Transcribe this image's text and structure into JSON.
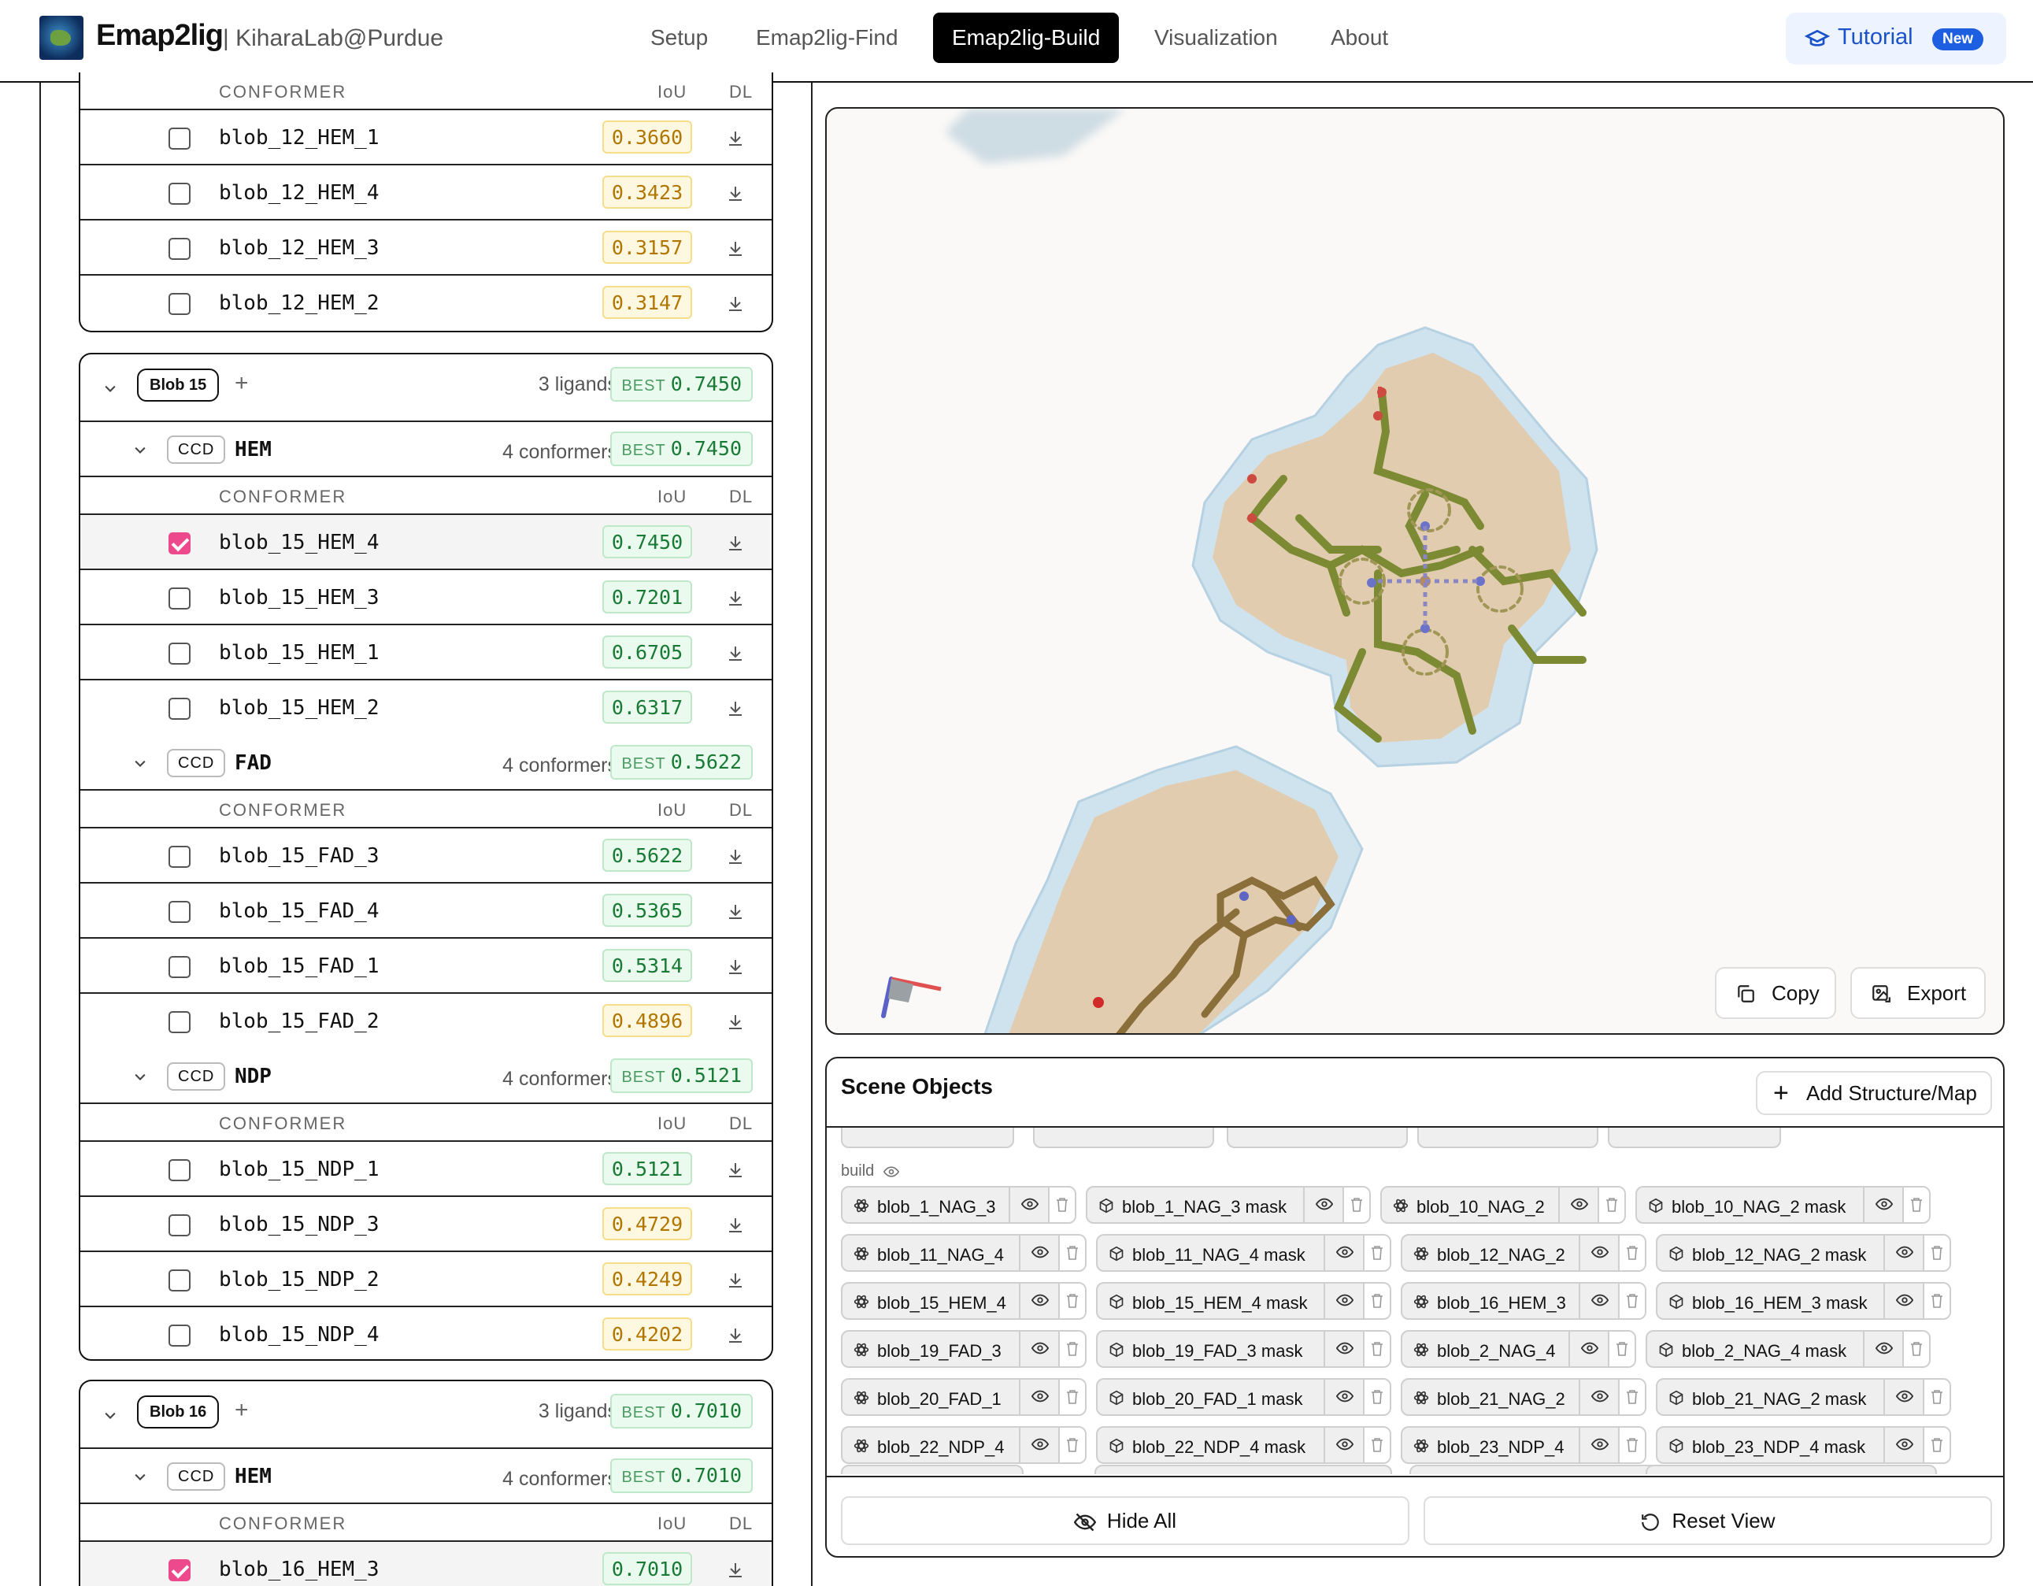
{
  "header": {
    "brand": "Emap2lig",
    "brand_sub": "| KiharaLab@Purdue",
    "nav": [
      "Setup",
      "Emap2lig-Find",
      "Emap2lig-Build",
      "Visualization",
      "About"
    ],
    "active_nav": "Emap2lig-Build",
    "tutorial": {
      "label": "Tutorial",
      "badge": "New"
    }
  },
  "table": {
    "col_conformer": "CONFORMER",
    "col_iou": "IoU",
    "col_dl": "DL"
  },
  "blob12_rows": [
    {
      "name": "blob_12_HEM_1",
      "iou": "0.3660",
      "level": "y",
      "checked": false
    },
    {
      "name": "blob_12_HEM_4",
      "iou": "0.3423",
      "level": "y",
      "checked": false
    },
    {
      "name": "blob_12_HEM_3",
      "iou": "0.3157",
      "level": "y",
      "checked": false
    },
    {
      "name": "blob_12_HEM_2",
      "iou": "0.3147",
      "level": "y",
      "checked": false
    }
  ],
  "blob15": {
    "tag": "Blob 15",
    "ligands": "3 ligands",
    "best_label": "BEST",
    "best": "0.7450",
    "ligands_list": [
      {
        "ccd": "CCD",
        "name": "HEM",
        "conformers": "4 conformers",
        "best": "0.7450",
        "rows": [
          {
            "name": "blob_15_HEM_4",
            "iou": "0.7450",
            "level": "g",
            "checked": true
          },
          {
            "name": "blob_15_HEM_3",
            "iou": "0.7201",
            "level": "g",
            "checked": false
          },
          {
            "name": "blob_15_HEM_1",
            "iou": "0.6705",
            "level": "g",
            "checked": false
          },
          {
            "name": "blob_15_HEM_2",
            "iou": "0.6317",
            "level": "g",
            "checked": false
          }
        ]
      },
      {
        "ccd": "CCD",
        "name": "FAD",
        "conformers": "4 conformers",
        "best": "0.5622",
        "rows": [
          {
            "name": "blob_15_FAD_3",
            "iou": "0.5622",
            "level": "g",
            "checked": false
          },
          {
            "name": "blob_15_FAD_4",
            "iou": "0.5365",
            "level": "g",
            "checked": false
          },
          {
            "name": "blob_15_FAD_1",
            "iou": "0.5314",
            "level": "g",
            "checked": false
          },
          {
            "name": "blob_15_FAD_2",
            "iou": "0.4896",
            "level": "y",
            "checked": false
          }
        ]
      },
      {
        "ccd": "CCD",
        "name": "NDP",
        "conformers": "4 conformers",
        "best": "0.5121",
        "rows": [
          {
            "name": "blob_15_NDP_1",
            "iou": "0.5121",
            "level": "g",
            "checked": false
          },
          {
            "name": "blob_15_NDP_3",
            "iou": "0.4729",
            "level": "y",
            "checked": false
          },
          {
            "name": "blob_15_NDP_2",
            "iou": "0.4249",
            "level": "y",
            "checked": false
          },
          {
            "name": "blob_15_NDP_4",
            "iou": "0.4202",
            "level": "y",
            "checked": false
          }
        ]
      }
    ]
  },
  "blob16": {
    "tag": "Blob 16",
    "ligands": "3 ligands",
    "best_label": "BEST",
    "best": "0.7010",
    "ligand": {
      "ccd": "CCD",
      "name": "HEM",
      "conformers": "4 conformers",
      "best": "0.7010"
    },
    "rows": [
      {
        "name": "blob_16_HEM_3",
        "iou": "0.7010",
        "level": "g",
        "checked": true
      }
    ]
  },
  "viewer": {
    "copy": "Copy",
    "export": "Export"
  },
  "scene": {
    "title": "Scene Objects",
    "add": "Add Structure/Map",
    "group": "build",
    "chips": [
      [
        {
          "t": "blob_1_NAG_3",
          "k": "atom"
        },
        {
          "t": "blob_1_NAG_3 mask",
          "k": "cube"
        },
        {
          "t": "blob_10_NAG_2",
          "k": "atom"
        },
        {
          "t": "blob_10_NAG_2 mask",
          "k": "cube"
        }
      ],
      [
        {
          "t": "blob_11_NAG_4",
          "k": "atom"
        },
        {
          "t": "blob_11_NAG_4 mask",
          "k": "cube"
        },
        {
          "t": "blob_12_NAG_2",
          "k": "atom"
        },
        {
          "t": "blob_12_NAG_2 mask",
          "k": "cube"
        }
      ],
      [
        {
          "t": "blob_15_HEM_4",
          "k": "atom"
        },
        {
          "t": "blob_15_HEM_4 mask",
          "k": "cube"
        },
        {
          "t": "blob_16_HEM_3",
          "k": "atom"
        },
        {
          "t": "blob_16_HEM_3 mask",
          "k": "cube"
        }
      ],
      [
        {
          "t": "blob_19_FAD_3",
          "k": "atom"
        },
        {
          "t": "blob_19_FAD_3 mask",
          "k": "cube"
        },
        {
          "t": "blob_2_NAG_4",
          "k": "atom"
        },
        {
          "t": "blob_2_NAG_4 mask",
          "k": "cube"
        }
      ],
      [
        {
          "t": "blob_20_FAD_1",
          "k": "atom"
        },
        {
          "t": "blob_20_FAD_1 mask",
          "k": "cube"
        },
        {
          "t": "blob_21_NAG_2",
          "k": "atom"
        },
        {
          "t": "blob_21_NAG_2 mask",
          "k": "cube"
        }
      ],
      [
        {
          "t": "blob_22_NDP_4",
          "k": "atom"
        },
        {
          "t": "blob_22_NDP_4 mask",
          "k": "cube"
        },
        {
          "t": "blob_23_NDP_4",
          "k": "atom"
        },
        {
          "t": "blob_23_NDP_4 mask",
          "k": "cube"
        }
      ]
    ],
    "hide_all": "Hide All",
    "reset_view": "Reset View"
  }
}
